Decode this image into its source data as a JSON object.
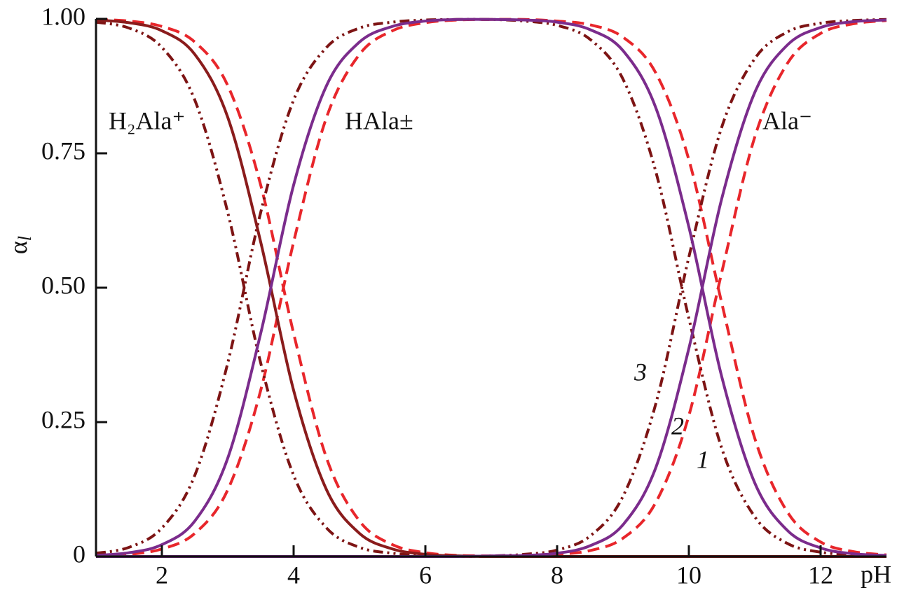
{
  "chart_data": {
    "type": "line",
    "x_label": "pH",
    "y_label": {
      "symbol": "α",
      "subscript": "l"
    },
    "x": [
      1,
      1.5,
      2,
      2.5,
      3,
      3.5,
      4,
      4.5,
      5,
      5.5,
      6,
      6.5,
      7,
      7.5,
      8,
      8.5,
      9,
      9.5,
      10,
      10.5,
      11,
      11.5,
      12,
      12.5,
      13
    ],
    "xlim": [
      1,
      13
    ],
    "xticks": [
      2,
      4,
      6,
      8,
      10,
      12
    ],
    "ylim": [
      0,
      1
    ],
    "yticks": [
      0,
      0.25,
      {
        "value": 0.5,
        "label": "0.50"
      },
      {
        "value": 0.75,
        "label": "0.75"
      },
      {
        "value": 1,
        "label": "1.00"
      }
    ],
    "series": [
      {
        "color": "#e8262b",
        "dash": "dashed",
        "values": [
          0.999,
          0.996,
          0.986,
          0.957,
          0.876,
          0.691,
          0.415,
          0.183,
          0.066,
          0.022,
          0.007,
          0.002,
          0.001,
          0,
          0,
          0,
          0,
          0,
          0,
          0,
          0,
          0,
          0,
          0,
          0
        ]
      },
      {
        "color": "#e8262b",
        "dash": "dashed",
        "values": [
          0.001,
          0.004,
          0.014,
          0.043,
          0.124,
          0.309,
          0.585,
          0.817,
          0.934,
          0.978,
          0.993,
          0.998,
          0.999,
          0.999,
          0.996,
          0.989,
          0.966,
          0.899,
          0.738,
          0.471,
          0.22,
          0.082,
          0.027,
          0.009,
          0.003
        ]
      },
      {
        "color": "#e8262b",
        "dash": "dashed",
        "values": [
          0,
          0,
          0,
          0,
          0,
          0,
          0,
          0,
          0,
          0,
          0,
          0,
          0,
          0.001,
          0.004,
          0.011,
          0.034,
          0.101,
          0.262,
          0.529,
          0.78,
          0.918,
          0.973,
          0.991,
          0.997
        ]
      },
      {
        "color": "#7d1414",
        "dash": "dash-dot-dot",
        "values": [
          0.994,
          0.983,
          0.947,
          0.849,
          0.64,
          0.36,
          0.151,
          0.053,
          0.017,
          0.006,
          0.002,
          0.001,
          0,
          0,
          0,
          0,
          0,
          0,
          0,
          0,
          0,
          0,
          0,
          0,
          0
        ]
      },
      {
        "color": "#7d1414",
        "dash": "dash-dot-dot",
        "values": [
          0.006,
          0.017,
          0.053,
          0.151,
          0.36,
          0.64,
          0.849,
          0.947,
          0.983,
          0.994,
          0.998,
          0.999,
          0.999,
          0.996,
          0.988,
          0.962,
          0.888,
          0.715,
          0.443,
          0.201,
          0.074,
          0.024,
          0.008,
          0.003,
          0.001
        ]
      },
      {
        "color": "#7d1414",
        "dash": "dash-dot-dot",
        "values": [
          0,
          0,
          0,
          0,
          0,
          0,
          0,
          0,
          0,
          0,
          0,
          0,
          0.001,
          0.004,
          0.012,
          0.038,
          0.112,
          0.285,
          0.557,
          0.799,
          0.926,
          0.976,
          0.992,
          0.997,
          0.999
        ]
      },
      {
        "color": "#8a1c1c",
        "dash": "solid",
        "values": [
          0.998,
          0.993,
          0.978,
          0.934,
          0.817,
          0.585,
          0.309,
          0.124,
          0.043,
          0.014,
          0.004,
          0.001,
          0,
          0,
          0,
          0,
          0,
          0,
          0,
          0,
          0,
          0,
          0,
          0,
          0
        ]
      },
      {
        "color": "#7b2c8c",
        "dash": "solid",
        "values": [
          0.002,
          0.007,
          0.022,
          0.066,
          0.183,
          0.415,
          0.691,
          0.876,
          0.957,
          0.986,
          0.996,
          0.999,
          0.999,
          0.998,
          0.994,
          0.98,
          0.941,
          0.834,
          0.613,
          0.334,
          0.137,
          0.048,
          0.016,
          0.005,
          0.002
        ]
      },
      {
        "color": "#7b2c8c",
        "dash": "solid",
        "values": [
          0,
          0,
          0,
          0,
          0,
          0,
          0,
          0,
          0,
          0,
          0,
          0,
          0.001,
          0.002,
          0.006,
          0.02,
          0.059,
          0.166,
          0.387,
          0.666,
          0.863,
          0.952,
          0.984,
          0.995,
          0.998
        ]
      }
    ],
    "annotations": [
      "H₂Ala⁺",
      "HAla±",
      "Ala⁻",
      "3",
      "2",
      "1"
    ]
  }
}
